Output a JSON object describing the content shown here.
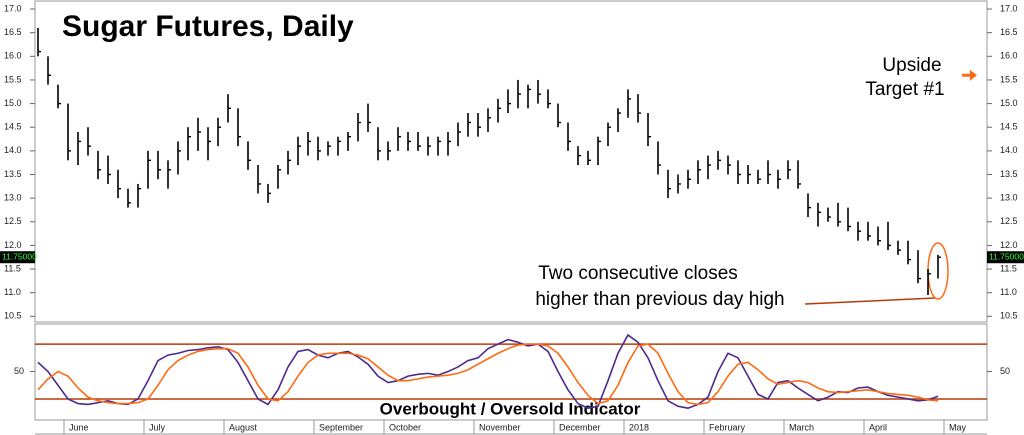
{
  "chart_data": {
    "type": "ohlc",
    "title": "Sugar Futures, Daily",
    "annotations": {
      "target": [
        "Upside",
        "Target #1"
      ],
      "target_arrow_value": 15.6,
      "note": [
        "Two consecutive closes",
        "higher than previous day high"
      ]
    },
    "categories": [
      null,
      null,
      null,
      "June",
      null,
      null,
      null,
      null,
      null,
      null,
      null,
      "July",
      null,
      null,
      null,
      null,
      null,
      null,
      null,
      "August",
      null,
      null,
      null,
      null,
      null,
      null,
      null,
      null,
      "September",
      null,
      null,
      null,
      null,
      null,
      null,
      "October",
      null,
      null,
      null,
      null,
      null,
      null,
      null,
      null,
      "November",
      null,
      null,
      null,
      null,
      null,
      null,
      null,
      "December",
      null,
      null,
      null,
      null,
      null,
      null,
      "2018",
      null,
      null,
      null,
      null,
      null,
      null,
      null,
      "February",
      null,
      null,
      null,
      null,
      null,
      null,
      null,
      "March",
      null,
      null,
      null,
      null,
      null,
      null,
      null,
      "April",
      null,
      null,
      null,
      null,
      null,
      null,
      null,
      "May",
      null
    ],
    "high": [
      16.6,
      16.0,
      15.4,
      15.0,
      14.4,
      14.5,
      14.0,
      13.9,
      13.6,
      13.2,
      13.3,
      14.0,
      14.0,
      13.8,
      14.2,
      14.5,
      14.7,
      14.5,
      14.7,
      15.2,
      14.9,
      14.2,
      13.7,
      13.3,
      13.7,
      14.0,
      14.3,
      14.4,
      14.3,
      14.2,
      14.3,
      14.4,
      14.8,
      15.0,
      14.5,
      14.2,
      14.5,
      14.4,
      14.4,
      14.3,
      14.3,
      14.4,
      14.6,
      14.8,
      14.8,
      14.9,
      15.1,
      15.3,
      15.5,
      15.4,
      15.5,
      15.3,
      15.0,
      14.6,
      14.1,
      14.0,
      14.3,
      14.6,
      14.9,
      15.3,
      15.2,
      14.8,
      14.2,
      13.6,
      13.5,
      13.6,
      13.8,
      13.9,
      14.0,
      13.9,
      13.8,
      13.7,
      13.6,
      13.8,
      13.6,
      13.8,
      13.8,
      13.1,
      12.9,
      12.8,
      12.9,
      12.8,
      12.5,
      12.5,
      12.4,
      12.5,
      12.1,
      12.1,
      11.9,
      11.5,
      11.8,
      null,
      null
    ],
    "low": [
      16.0,
      15.4,
      14.9,
      13.8,
      13.7,
      13.9,
      13.4,
      13.3,
      13.0,
      12.8,
      12.8,
      13.2,
      13.4,
      13.2,
      13.5,
      13.8,
      14.0,
      13.8,
      14.1,
      14.6,
      14.1,
      13.6,
      13.1,
      12.9,
      13.2,
      13.5,
      13.7,
      13.9,
      13.8,
      13.9,
      13.9,
      14.0,
      14.2,
      14.4,
      13.8,
      13.8,
      14.0,
      14.0,
      14.0,
      13.9,
      13.9,
      13.9,
      14.1,
      14.3,
      14.3,
      14.4,
      14.6,
      14.8,
      14.9,
      14.9,
      15.0,
      14.9,
      14.5,
      14.0,
      13.7,
      13.7,
      13.7,
      14.1,
      14.4,
      14.7,
      14.6,
      14.1,
      13.5,
      13.0,
      13.1,
      13.2,
      13.3,
      13.4,
      13.6,
      13.5,
      13.3,
      13.3,
      13.3,
      13.3,
      13.2,
      13.4,
      13.2,
      12.6,
      12.4,
      12.5,
      12.4,
      12.3,
      12.1,
      12.1,
      12.0,
      11.9,
      11.8,
      11.6,
      11.2,
      10.95,
      11.3,
      null,
      null
    ],
    "close": [
      16.1,
      15.6,
      15.0,
      14.0,
      14.2,
      14.1,
      13.6,
      13.5,
      13.2,
      12.9,
      13.2,
      13.8,
      13.6,
      13.6,
      14.0,
      14.3,
      14.4,
      14.2,
      14.5,
      14.9,
      14.3,
      13.8,
      13.3,
      13.1,
      13.6,
      13.8,
      14.1,
      14.2,
      14.0,
      14.1,
      14.2,
      14.3,
      14.6,
      14.6,
      14.0,
      14.0,
      14.3,
      14.2,
      14.1,
      14.1,
      14.2,
      14.2,
      14.4,
      14.6,
      14.5,
      14.7,
      14.9,
      15.0,
      15.2,
      15.3,
      15.2,
      15.0,
      14.6,
      14.2,
      13.9,
      13.8,
      14.2,
      14.5,
      14.8,
      15.1,
      14.8,
      14.3,
      13.7,
      13.2,
      13.3,
      13.4,
      13.6,
      13.7,
      13.8,
      13.7,
      13.5,
      13.5,
      13.4,
      13.5,
      13.4,
      13.6,
      13.3,
      12.8,
      12.7,
      12.6,
      12.5,
      12.4,
      12.3,
      12.2,
      12.1,
      12.0,
      11.9,
      11.7,
      11.3,
      11.4,
      11.75,
      null,
      null
    ],
    "color": "#000000",
    "ylim": [
      10.38,
      17.17
    ],
    "yticks": [
      10.5,
      {
        "value": 11,
        "label": "11.0"
      },
      11.5,
      {
        "value": 12,
        "label": "12.0"
      },
      12.5,
      {
        "value": 13,
        "label": "13.0"
      },
      13.5,
      {
        "value": 14,
        "label": "14.0"
      },
      14.5,
      {
        "value": 15,
        "label": "15.0"
      },
      15.5,
      {
        "value": 16,
        "label": "16.0"
      },
      16.5,
      {
        "value": 17,
        "label": "17.0"
      }
    ],
    "last_price": {
      "value": 11.75,
      "label": "11.75000"
    },
    "indicator": {
      "type": "line",
      "title": "Overbought / Oversold Indicator",
      "ylim": [
        -3,
        102
      ],
      "yticks": [
        50
      ],
      "levels": [
        80,
        20
      ],
      "level_color": "#b83a0a",
      "series": [
        {
          "color": "#4b2a8c",
          "values": [
            60,
            50,
            35,
            20,
            15,
            14,
            16,
            18,
            15,
            14,
            20,
            40,
            62,
            68,
            70,
            73,
            74,
            76,
            77,
            74,
            60,
            40,
            20,
            14,
            30,
            55,
            72,
            74,
            68,
            65,
            70,
            72,
            66,
            58,
            45,
            38,
            40,
            45,
            47,
            48,
            46,
            50,
            55,
            62,
            65,
            75,
            80,
            85,
            82,
            78,
            80,
            72,
            50,
            30,
            15,
            10,
            12,
            40,
            70,
            90,
            82,
            65,
            40,
            18,
            12,
            10,
            14,
            22,
            50,
            70,
            65,
            45,
            25,
            20,
            38,
            40,
            32,
            25,
            18,
            22,
            28,
            27,
            32,
            33,
            28,
            24,
            22,
            20,
            18,
            19,
            23,
            null,
            null
          ]
        },
        {
          "color": "#ff6a13",
          "values": [
            30,
            42,
            50,
            45,
            32,
            22,
            18,
            16,
            15,
            15,
            16,
            20,
            35,
            52,
            62,
            68,
            72,
            74,
            75,
            75,
            70,
            55,
            35,
            20,
            18,
            28,
            45,
            60,
            68,
            70,
            70,
            70,
            68,
            64,
            55,
            46,
            40,
            40,
            42,
            44,
            45,
            46,
            48,
            52,
            58,
            64,
            70,
            75,
            79,
            80,
            80,
            78,
            70,
            55,
            38,
            24,
            15,
            18,
            35,
            60,
            78,
            80,
            70,
            48,
            28,
            16,
            14,
            16,
            28,
            45,
            58,
            60,
            52,
            42,
            36,
            38,
            40,
            38,
            32,
            28,
            27,
            28,
            29,
            30,
            28,
            26,
            25,
            24,
            22,
            19,
            18,
            null,
            null
          ]
        }
      ]
    }
  }
}
